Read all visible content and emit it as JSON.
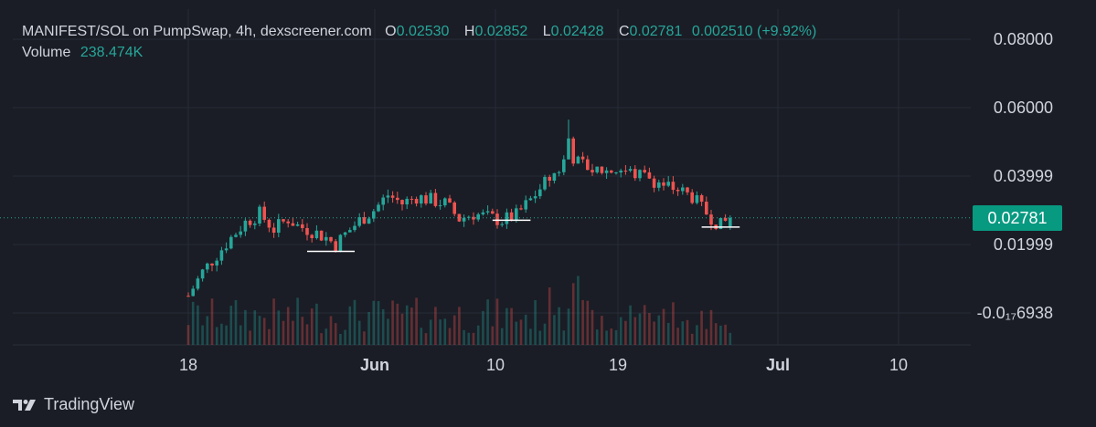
{
  "legend": {
    "symbol": "MANIFEST/SOL on PumpSwap, 4h, dexscreener.com",
    "open_label": "O",
    "open": "0.02530",
    "high_label": "H",
    "high": "0.02852",
    "low_label": "L",
    "low": "0.02428",
    "close_label": "C",
    "close": "0.02781",
    "change": "0.002510 (+9.92%)",
    "volume_label": "Volume",
    "volume": "238.474K"
  },
  "price_tag": "0.02781",
  "brand": "TradingView",
  "colors": {
    "up": "#26a69a",
    "down": "#ef5350",
    "background": "#1a1d25",
    "grid": "#262b36",
    "axis_text": "#d1d4dc"
  },
  "chart_data": {
    "type": "candlestick",
    "interval": "4h",
    "y_ticks": [
      "0.08000",
      "0.06000",
      "0.03999",
      "0.01999",
      "-0.0₁₇6938"
    ],
    "x_ticks": [
      "18",
      "Jun",
      "10",
      "19",
      "Jul",
      "10"
    ],
    "ylim": [
      0,
      0.085
    ],
    "current_price": 0.02781,
    "grid": true,
    "price_path": [
      {
        "x": 0,
        "y": 0.005
      },
      {
        "x": 3,
        "y": 0.012
      },
      {
        "x": 6,
        "y": 0.017
      },
      {
        "x": 9,
        "y": 0.022
      },
      {
        "x": 12,
        "y": 0.0265
      },
      {
        "x": 15,
        "y": 0.029
      },
      {
        "x": 18,
        "y": 0.0245
      },
      {
        "x": 21,
        "y": 0.0275
      },
      {
        "x": 23,
        "y": 0.0255
      },
      {
        "x": 26,
        "y": 0.024
      },
      {
        "x": 29,
        "y": 0.022
      },
      {
        "x": 31,
        "y": 0.02
      },
      {
        "x": 33,
        "y": 0.023
      },
      {
        "x": 36,
        "y": 0.027
      },
      {
        "x": 39,
        "y": 0.03
      },
      {
        "x": 42,
        "y": 0.0345
      },
      {
        "x": 45,
        "y": 0.032
      },
      {
        "x": 48,
        "y": 0.034
      },
      {
        "x": 51,
        "y": 0.033
      },
      {
        "x": 54,
        "y": 0.032
      },
      {
        "x": 57,
        "y": 0.0275
      },
      {
        "x": 60,
        "y": 0.029
      },
      {
        "x": 63,
        "y": 0.028
      },
      {
        "x": 66,
        "y": 0.027
      },
      {
        "x": 69,
        "y": 0.0285
      },
      {
        "x": 72,
        "y": 0.033
      },
      {
        "x": 75,
        "y": 0.038
      },
      {
        "x": 78,
        "y": 0.042
      },
      {
        "x": 80,
        "y": 0.047
      },
      {
        "x": 82,
        "y": 0.044
      },
      {
        "x": 85,
        "y": 0.042
      },
      {
        "x": 88,
        "y": 0.0415
      },
      {
        "x": 91,
        "y": 0.042
      },
      {
        "x": 94,
        "y": 0.0405
      },
      {
        "x": 97,
        "y": 0.0395
      },
      {
        "x": 100,
        "y": 0.0375
      },
      {
        "x": 103,
        "y": 0.036
      },
      {
        "x": 106,
        "y": 0.034
      },
      {
        "x": 108,
        "y": 0.0305
      },
      {
        "x": 110,
        "y": 0.028
      },
      {
        "x": 112,
        "y": 0.0255
      },
      {
        "x": 114,
        "y": 0.0278
      }
    ],
    "candle_count": 115,
    "spike": {
      "index": 80,
      "high": 0.0565
    },
    "support_lines": [
      {
        "from": 25,
        "to": 35,
        "price": 0.018
      },
      {
        "from": 64,
        "to": 72,
        "price": 0.0271
      },
      {
        "from": 108,
        "to": 116,
        "price": 0.0251
      }
    ],
    "volume_seed": 7
  }
}
